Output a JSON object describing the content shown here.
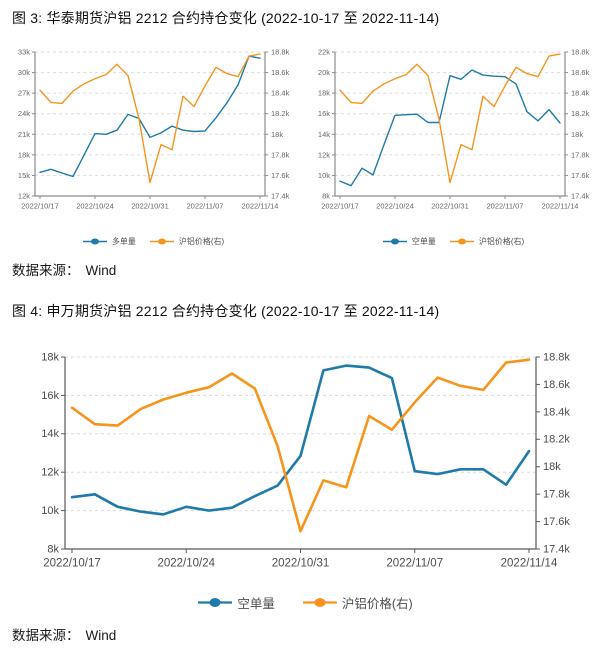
{
  "figure3": {
    "title": "图 3: 华泰期货沪铝 2212 合约持仓变化 (2022-10-17 至 2022-11-14)"
  },
  "figure4": {
    "title": "图 4: 申万期货沪铝 2212 合约持仓变化 (2022-10-17 至 2022-11-14)"
  },
  "source": {
    "label": "数据来源：",
    "value": "Wind"
  },
  "colors": {
    "blue": "#1E7BA9",
    "orange": "#F7941E",
    "grid": "#DBDBDB",
    "axis_small": "#8C8C8C",
    "axis_big": "#595959",
    "tick_text_small": "#666666",
    "tick_text_big": "#4D4D4D"
  },
  "chart_data": [
    {
      "id": "fig3-left",
      "type": "line",
      "title": "",
      "categories": [
        "2022/10/17",
        "2022/10/18",
        "2022/10/19",
        "2022/10/20",
        "2022/10/21",
        "2022/10/24",
        "2022/10/25",
        "2022/10/26",
        "2022/10/27",
        "2022/10/28",
        "2022/10/31",
        "2022/11/01",
        "2022/11/02",
        "2022/11/03",
        "2022/11/04",
        "2022/11/07",
        "2022/11/08",
        "2022/11/09",
        "2022/11/10",
        "2022/11/11",
        "2022/11/14"
      ],
      "x_tick_indices": [
        0,
        5,
        10,
        15,
        20
      ],
      "x_tick_labels": [
        "2022/10/17",
        "2022/10/24",
        "2022/10/31",
        "2022/11/07",
        "2022/11/14"
      ],
      "left_axis": {
        "min": 12000,
        "max": 33000,
        "tick_labels": [
          "12k",
          "15k",
          "18k",
          "21k",
          "24k",
          "27k",
          "30k",
          "33k"
        ]
      },
      "right_axis": {
        "min": 17400,
        "max": 18800,
        "tick_labels": [
          "17.4k",
          "17.6k",
          "17.8k",
          "18k",
          "18.2k",
          "18.4k",
          "18.6k",
          "18.8k"
        ]
      },
      "series": [
        {
          "key": "long-volume",
          "name": "多单量",
          "axis": "left",
          "color": "blue",
          "values": [
            15450,
            15900,
            15350,
            14850,
            17950,
            21100,
            21000,
            21600,
            23900,
            23300,
            20550,
            21200,
            22200,
            21600,
            21400,
            21500,
            23400,
            25600,
            28200,
            32400,
            32100
          ]
        },
        {
          "key": "price",
          "name": "沪铝价格(右)",
          "axis": "right",
          "color": "orange",
          "values": [
            18430,
            18310,
            18300,
            18420,
            18490,
            18540,
            18580,
            18680,
            18570,
            18150,
            17530,
            17900,
            17850,
            18370,
            18270,
            18470,
            18650,
            18590,
            18560,
            18760,
            18780
          ]
        }
      ],
      "legend_position": "bottom",
      "grid": "dashed-horizontal"
    },
    {
      "id": "fig3-right",
      "type": "line",
      "title": "",
      "categories": [
        "2022/10/17",
        "2022/10/18",
        "2022/10/19",
        "2022/10/20",
        "2022/10/21",
        "2022/10/24",
        "2022/10/25",
        "2022/10/26",
        "2022/10/27",
        "2022/10/28",
        "2022/10/31",
        "2022/11/01",
        "2022/11/02",
        "2022/11/03",
        "2022/11/04",
        "2022/11/07",
        "2022/11/08",
        "2022/11/09",
        "2022/11/10",
        "2022/11/11",
        "2022/11/14"
      ],
      "x_tick_indices": [
        0,
        5,
        10,
        15,
        20
      ],
      "x_tick_labels": [
        "2022/10/17",
        "2022/10/24",
        "2022/10/31",
        "2022/11/07",
        "2022/11/14"
      ],
      "left_axis": {
        "min": 8000,
        "max": 22000,
        "tick_labels": [
          "8k",
          "10k",
          "12k",
          "14k",
          "16k",
          "18k",
          "20k",
          "22k"
        ]
      },
      "right_axis": {
        "min": 17400,
        "max": 18800,
        "tick_labels": [
          "17.4k",
          "17.6k",
          "17.8k",
          "18k",
          "18.2k",
          "18.4k",
          "18.6k",
          "18.8k"
        ]
      },
      "series": [
        {
          "key": "short-volume",
          "name": "空单量",
          "axis": "left",
          "color": "blue",
          "values": [
            9450,
            9000,
            10700,
            10050,
            13000,
            15850,
            15900,
            15950,
            15150,
            15150,
            19700,
            19350,
            20250,
            19750,
            19650,
            19600,
            18900,
            16200,
            15300,
            16400,
            15100
          ]
        },
        {
          "key": "price",
          "name": "沪铝价格(右)",
          "axis": "right",
          "color": "orange",
          "values": [
            18430,
            18310,
            18300,
            18420,
            18490,
            18540,
            18580,
            18680,
            18570,
            18150,
            17530,
            17900,
            17850,
            18370,
            18270,
            18470,
            18650,
            18590,
            18560,
            18760,
            18780
          ]
        }
      ],
      "legend_position": "bottom",
      "grid": "dashed-horizontal"
    },
    {
      "id": "fig4",
      "type": "line",
      "title": "",
      "categories": [
        "2022/10/17",
        "2022/10/18",
        "2022/10/19",
        "2022/10/20",
        "2022/10/21",
        "2022/10/24",
        "2022/10/25",
        "2022/10/26",
        "2022/10/27",
        "2022/10/28",
        "2022/10/31",
        "2022/11/01",
        "2022/11/02",
        "2022/11/03",
        "2022/11/04",
        "2022/11/07",
        "2022/11/08",
        "2022/11/09",
        "2022/11/10",
        "2022/11/11",
        "2022/11/14"
      ],
      "x_tick_indices": [
        0,
        5,
        10,
        15,
        20
      ],
      "x_tick_labels": [
        "2022/10/17",
        "2022/10/24",
        "2022/10/31",
        "2022/11/07",
        "2022/11/14"
      ],
      "left_axis": {
        "min": 8000,
        "max": 18000,
        "tick_labels": [
          "8k",
          "10k",
          "12k",
          "14k",
          "16k",
          "18k"
        ]
      },
      "right_axis": {
        "min": 17400,
        "max": 18800,
        "tick_labels": [
          "17.4k",
          "17.6k",
          "17.8k",
          "18k",
          "18.2k",
          "18.4k",
          "18.6k",
          "18.8k"
        ]
      },
      "series": [
        {
          "key": "short-volume",
          "name": "空单量",
          "axis": "left",
          "color": "blue",
          "values": [
            10700,
            10850,
            10200,
            9950,
            9800,
            10200,
            10000,
            10150,
            10750,
            11300,
            12850,
            17300,
            17550,
            17450,
            16900,
            12050,
            11900,
            12150,
            12150,
            11350,
            13100
          ]
        },
        {
          "key": "price",
          "name": "沪铝价格(右)",
          "axis": "right",
          "color": "orange",
          "values": [
            18430,
            18310,
            18300,
            18420,
            18490,
            18540,
            18580,
            18680,
            18570,
            18150,
            17530,
            17900,
            17850,
            18370,
            18270,
            18470,
            18650,
            18590,
            18560,
            18760,
            18780
          ]
        }
      ],
      "legend_position": "bottom",
      "grid": "dashed-horizontal"
    }
  ]
}
